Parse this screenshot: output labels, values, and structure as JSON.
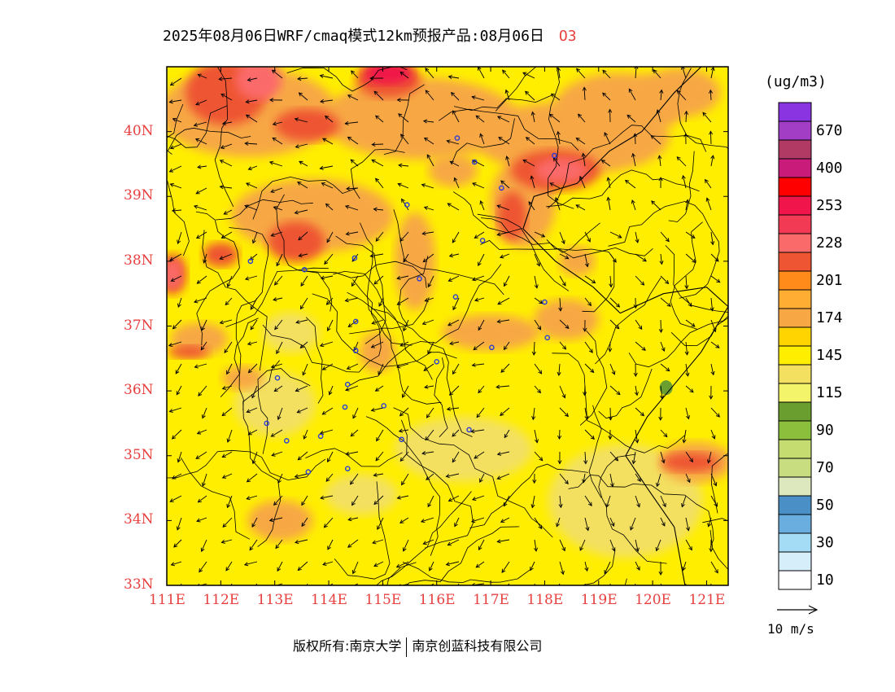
{
  "title": {
    "text": "2025年08月06日WRF/cmaq模式12km预报产品:08月06日",
    "species": "O3",
    "species_color": "#e8403f"
  },
  "colorbar": {
    "unit": "(ug/m3)",
    "levels": [
      {
        "label": "",
        "color": "#8a33e0"
      },
      {
        "label": "670",
        "color": "#a23ec6"
      },
      {
        "label": "",
        "color": "#b03a63"
      },
      {
        "label": "400",
        "color": "#c81b7a"
      },
      {
        "label": "",
        "color": "#ff0000"
      },
      {
        "label": "253",
        "color": "#f0154a"
      },
      {
        "label": "",
        "color": "#f33a55"
      },
      {
        "label": "228",
        "color": "#fb6a6a"
      },
      {
        "label": "",
        "color": "#ee5533"
      },
      {
        "label": "201",
        "color": "#ff8c1a"
      },
      {
        "label": "",
        "color": "#ffad33"
      },
      {
        "label": "174",
        "color": "#f7a845"
      },
      {
        "label": "",
        "color": "#ffd400"
      },
      {
        "label": "145",
        "color": "#ffee00"
      },
      {
        "label": "",
        "color": "#f3e060"
      },
      {
        "label": "115",
        "color": "#f4f46a"
      },
      {
        "label": "",
        "color": "#6a9e2e"
      },
      {
        "label": "90",
        "color": "#8cc03c"
      },
      {
        "label": "",
        "color": "#c4dc70"
      },
      {
        "label": "70",
        "color": "#c8dc80"
      },
      {
        "label": "",
        "color": "#dde8bf"
      },
      {
        "label": "50",
        "color": "#4a8fc6"
      },
      {
        "label": "",
        "color": "#6aaee0"
      },
      {
        "label": "30",
        "color": "#a5dcf5"
      },
      {
        "label": "",
        "color": "#d5eef9"
      },
      {
        "label": "10",
        "color": "#ffffff"
      }
    ]
  },
  "axes": {
    "x_ticks": [
      "111E",
      "112E",
      "113E",
      "114E",
      "115E",
      "116E",
      "117E",
      "118E",
      "119E",
      "120E",
      "121E"
    ],
    "y_ticks": [
      "40N",
      "39N",
      "38N",
      "37N",
      "36N",
      "35N",
      "34N",
      "33N"
    ],
    "tick_color": "#e8403f"
  },
  "wind_reference": {
    "label": "10 m/s"
  },
  "copyright": {
    "left": "版权所有:南京大学",
    "right": "南京创蓝科技有限公司"
  },
  "map_colors": {
    "base_yellow": "#ffee00",
    "light_yellow": "#f3e060",
    "orange": "#f7a845",
    "dark_orange": "#ffad33",
    "red_orange": "#ee5533",
    "pink": "#fb6a6a",
    "magenta": "#f0154a",
    "green": "#6a9e2e",
    "station_marker": "#2a3bd9"
  },
  "stations": [
    {
      "lon": 112.55,
      "lat": 38.0
    },
    {
      "lon": 113.55,
      "lat": 37.87
    },
    {
      "lon": 114.48,
      "lat": 38.05
    },
    {
      "lon": 115.45,
      "lat": 38.87
    },
    {
      "lon": 116.38,
      "lat": 39.9
    },
    {
      "lon": 116.7,
      "lat": 39.53
    },
    {
      "lon": 117.2,
      "lat": 39.13
    },
    {
      "lon": 118.18,
      "lat": 39.63
    },
    {
      "lon": 116.85,
      "lat": 38.32
    },
    {
      "lon": 115.68,
      "lat": 37.73
    },
    {
      "lon": 116.35,
      "lat": 37.45
    },
    {
      "lon": 114.5,
      "lat": 37.07
    },
    {
      "lon": 114.5,
      "lat": 36.62
    },
    {
      "lon": 116.0,
      "lat": 36.45
    },
    {
      "lon": 117.02,
      "lat": 36.67
    },
    {
      "lon": 118.05,
      "lat": 36.82
    },
    {
      "lon": 118.0,
      "lat": 37.37
    },
    {
      "lon": 113.05,
      "lat": 36.2
    },
    {
      "lon": 114.35,
      "lat": 36.1
    },
    {
      "lon": 114.3,
      "lat": 35.75
    },
    {
      "lon": 115.02,
      "lat": 35.77
    },
    {
      "lon": 112.85,
      "lat": 35.5
    },
    {
      "lon": 113.22,
      "lat": 35.23
    },
    {
      "lon": 113.85,
      "lat": 35.3
    },
    {
      "lon": 115.35,
      "lat": 35.25
    },
    {
      "lon": 116.6,
      "lat": 35.4
    },
    {
      "lon": 114.35,
      "lat": 34.8
    },
    {
      "lon": 113.62,
      "lat": 34.75
    }
  ]
}
